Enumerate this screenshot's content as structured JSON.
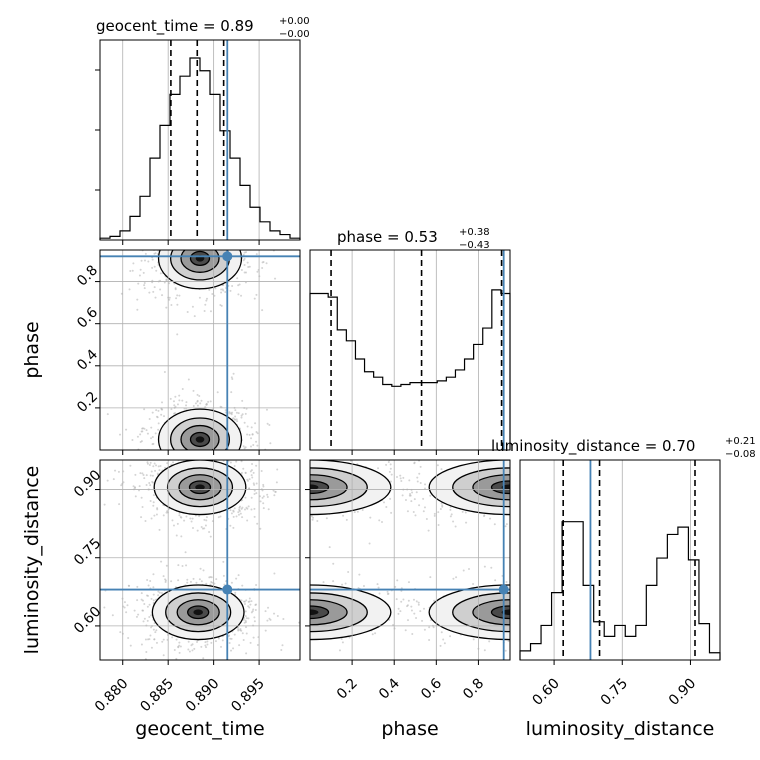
{
  "chart_data": {
    "type": "corner",
    "parameters": [
      {
        "name": "geocent_time",
        "label": "geocent_time",
        "range": [
          0.8775,
          0.8995
        ],
        "ticks": [
          0.88,
          0.885,
          0.89,
          0.895
        ],
        "tick_labels": [
          "0.880",
          "0.885",
          "0.890",
          "0.895"
        ]
      },
      {
        "name": "phase",
        "label": "phase",
        "range": [
          0.0,
          0.95
        ],
        "ticks": [
          0.2,
          0.4,
          0.6,
          0.8
        ],
        "tick_labels": [
          "0.2",
          "0.4",
          "0.6",
          "0.8"
        ]
      },
      {
        "name": "luminosity_distance",
        "label": "luminosity_distance",
        "range": [
          0.525,
          0.965
        ],
        "ticks": [
          0.6,
          0.75,
          0.9
        ],
        "tick_labels": [
          "0.60",
          "0.75",
          "0.90"
        ]
      }
    ],
    "titles": {
      "geocent_time": {
        "main": "geocent_time = 0.89",
        "sup": "+0.00",
        "sub": "−0.00"
      },
      "phase": {
        "main": "phase = 0.53",
        "sup": "+0.38",
        "sub": "−0.43"
      },
      "luminosity_distance": {
        "main": "luminosity_distance = 0.70",
        "sup": "+0.21",
        "sub": "−0.08"
      }
    },
    "truths": {
      "geocent_time": 0.8915,
      "phase": 0.92,
      "luminosity_distance": 0.68
    },
    "quantiles": {
      "geocent_time": [
        0.8853,
        0.8882,
        0.8911
      ],
      "phase": [
        0.1,
        0.53,
        0.91
      ],
      "luminosity_distance": [
        0.62,
        0.7,
        0.91
      ]
    },
    "histograms": {
      "geocent_time": {
        "edges_range": [
          0.8775,
          0.8995
        ],
        "counts": [
          0.01,
          0.02,
          0.05,
          0.13,
          0.24,
          0.45,
          0.63,
          0.8,
          0.9,
          1.0,
          0.93,
          0.8,
          0.6,
          0.45,
          0.3,
          0.18,
          0.1,
          0.05,
          0.03,
          0.01
        ]
      },
      "phase": {
        "edges_range": [
          0.0,
          0.95
        ],
        "counts": [
          0.86,
          0.86,
          0.84,
          0.66,
          0.6,
          0.5,
          0.43,
          0.4,
          0.36,
          0.35,
          0.36,
          0.37,
          0.37,
          0.37,
          0.38,
          0.4,
          0.44,
          0.5,
          0.58,
          0.67,
          0.88,
          0.86
        ]
      },
      "luminosity_distance": {
        "edges_range": [
          0.525,
          0.965
        ],
        "counts": [
          0.05,
          0.09,
          0.19,
          0.37,
          0.76,
          0.76,
          0.41,
          0.21,
          0.13,
          0.19,
          0.13,
          0.19,
          0.41,
          0.56,
          0.69,
          0.73,
          0.55,
          0.2,
          0.04
        ]
      }
    },
    "contours_2d": {
      "phase_vs_geocent_time": {
        "modes": [
          {
            "x": 0.8885,
            "y": 0.91
          },
          {
            "x": 0.8885,
            "y": 0.05
          }
        ]
      },
      "luminosity_distance_vs_geocent_time": {
        "modes": [
          {
            "x": 0.8885,
            "y": 0.905
          },
          {
            "x": 0.8883,
            "y": 0.63
          }
        ]
      },
      "luminosity_distance_vs_phase": {
        "modes": [
          {
            "x": 0.0,
            "y": 0.905
          },
          {
            "x": 0.95,
            "y": 0.905
          },
          {
            "x": 0.0,
            "y": 0.63
          },
          {
            "x": 0.95,
            "y": 0.63
          }
        ]
      }
    },
    "grid": true,
    "colors": {
      "truth": "#4682b4",
      "hist": "#000000",
      "density": "#000000"
    }
  }
}
